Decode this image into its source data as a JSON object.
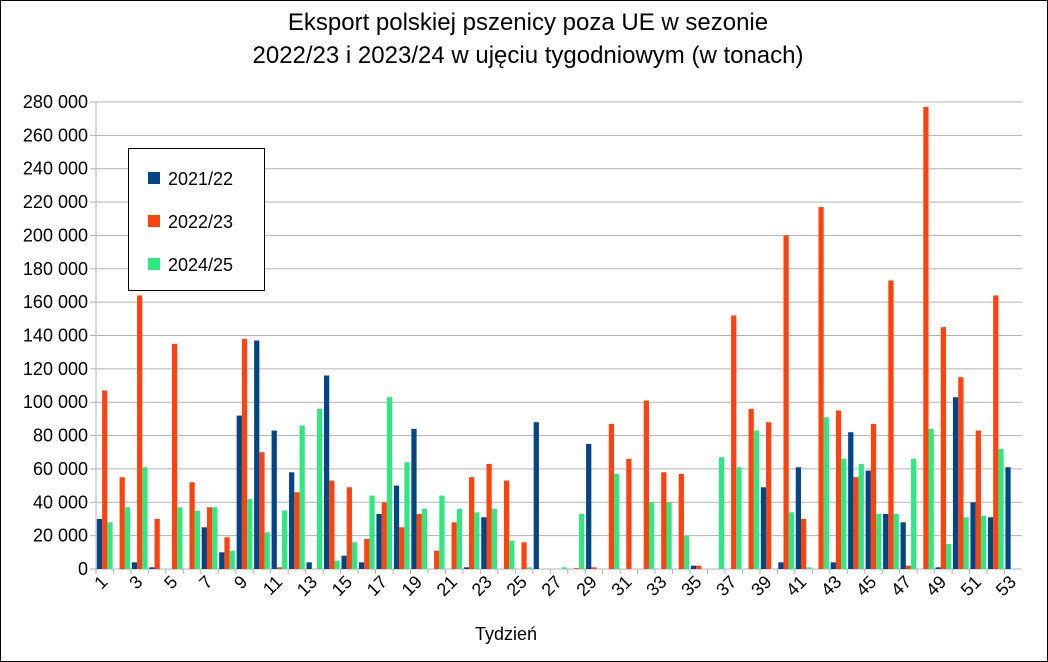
{
  "chart_data": {
    "type": "bar",
    "title_lines": [
      "Eksport polskiej pszenicy poza UE w sezonie",
      "2022/23 i 2023/24 w ujęciu tygodniowym (w tonach)"
    ],
    "x_label": "Tydzień",
    "categories": [
      1,
      null,
      3,
      null,
      5,
      null,
      7,
      null,
      9,
      null,
      11,
      null,
      13,
      null,
      15,
      null,
      17,
      null,
      19,
      null,
      21,
      null,
      23,
      null,
      25,
      null,
      27,
      null,
      29,
      null,
      31,
      null,
      33,
      null,
      35,
      null,
      37,
      null,
      39,
      null,
      41,
      null,
      43,
      null,
      45,
      null,
      47,
      null,
      49,
      null,
      51,
      null,
      53
    ],
    "series": [
      {
        "name": "2021/22",
        "color": "#004586",
        "values": [
          30000,
          0,
          4000,
          1000,
          0,
          0,
          25000,
          10000,
          92000,
          137000,
          83000,
          58000,
          4000,
          116000,
          8000,
          4000,
          33000,
          50000,
          84000,
          0,
          0,
          1000,
          31000,
          0,
          0,
          88000,
          0,
          0,
          75000,
          0,
          0,
          0,
          0,
          0,
          2000,
          0,
          0,
          0,
          49000,
          4000,
          61000,
          0,
          4000,
          82000,
          59000,
          33000,
          28000,
          0,
          1000,
          103000,
          40000,
          31000,
          61000
        ]
      },
      {
        "name": "2022/23",
        "color": "#ff420e",
        "values": [
          107000,
          55000,
          164000,
          30000,
          135000,
          52000,
          37000,
          19000,
          138000,
          70000,
          1000,
          46000,
          0,
          53000,
          49000,
          18000,
          40000,
          25000,
          33000,
          11000,
          28000,
          55000,
          63000,
          53000,
          16000,
          0,
          0,
          500,
          1000,
          87000,
          66000,
          101000,
          58000,
          57000,
          2000,
          0,
          152000,
          96000,
          88000,
          200000,
          30000,
          217000,
          95000,
          55000,
          87000,
          173000,
          2000,
          277000,
          145000,
          115000,
          83000,
          164000,
          0
        ]
      },
      {
        "name": "2024/25",
        "color": "#2ee880",
        "values": [
          28000,
          37000,
          61000,
          0,
          37000,
          35000,
          37000,
          11000,
          42000,
          22000,
          35000,
          86000,
          96000,
          5000,
          16000,
          44000,
          103000,
          64000,
          36000,
          44000,
          36000,
          34000,
          36000,
          17000,
          1000,
          0,
          1000,
          33000,
          0,
          57000,
          0,
          40000,
          40000,
          20000,
          0,
          67000,
          61000,
          83000,
          0,
          34000,
          1000,
          91000,
          66000,
          63000,
          33000,
          33000,
          66000,
          84000,
          15000,
          31000,
          32000,
          72000,
          0
        ]
      }
    ],
    "ylim": [
      0,
      280000
    ],
    "yticks": [
      0,
      {
        "value": 20000,
        "label": "20 000"
      },
      {
        "value": 40000,
        "label": "40 000"
      },
      {
        "value": 60000,
        "label": "60 000"
      },
      {
        "value": 80000,
        "label": "80 000"
      },
      {
        "value": 100000,
        "label": "100 000"
      },
      {
        "value": 120000,
        "label": "120 000"
      },
      {
        "value": 140000,
        "label": "140 000"
      },
      {
        "value": 160000,
        "label": "160 000"
      },
      {
        "value": 180000,
        "label": "180 000"
      },
      {
        "value": 200000,
        "label": "200 000"
      },
      {
        "value": 220000,
        "label": "220 000"
      },
      {
        "value": 240000,
        "label": "240 000"
      },
      {
        "value": 260000,
        "label": "260 000"
      },
      {
        "value": 280000,
        "label": "280 000"
      }
    ],
    "grid": true
  }
}
